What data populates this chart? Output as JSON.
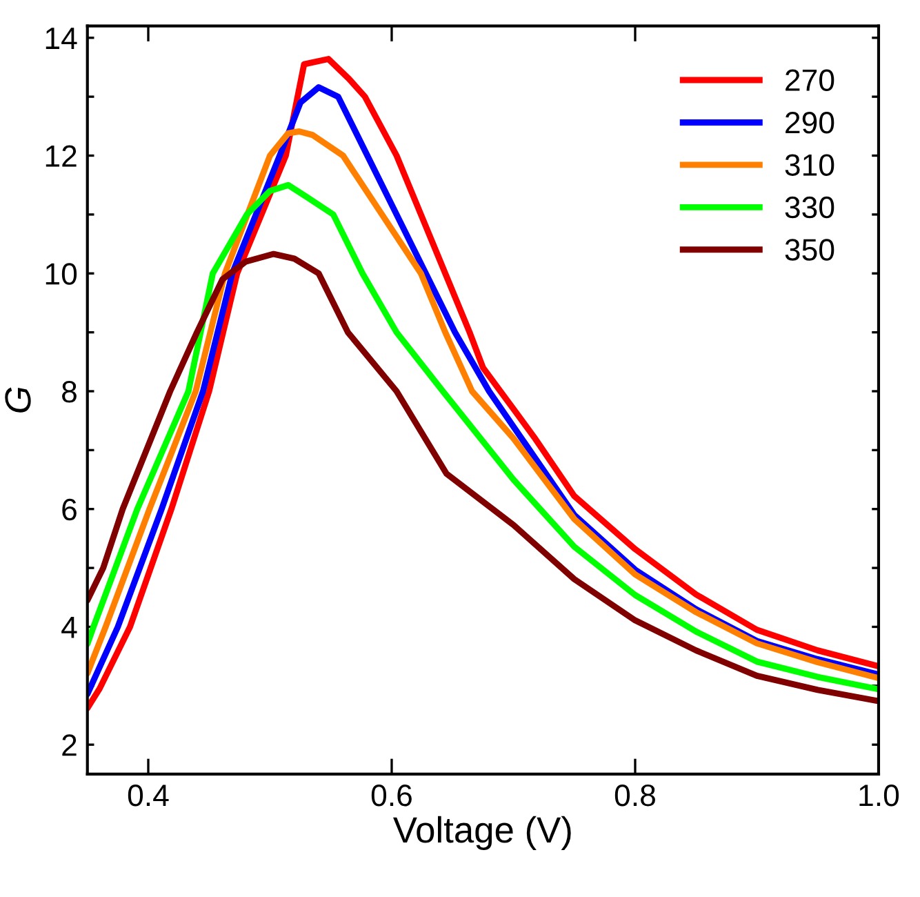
{
  "chart_data": {
    "type": "line",
    "xlabel": "Voltage (V)",
    "ylabel": "G",
    "xlim": [
      0.35,
      1.0
    ],
    "ylim": [
      1.5,
      14.2
    ],
    "xticks": [
      0.4,
      0.6,
      0.8,
      {
        "value": 1.0,
        "label": "1.0"
      }
    ],
    "yticks": [
      2,
      {
        "value": 3,
        "label": null
      },
      4,
      {
        "value": 5,
        "label": null
      },
      6,
      {
        "value": 7,
        "label": null
      },
      8,
      {
        "value": 9,
        "label": null
      },
      10,
      {
        "value": 11,
        "label": null
      },
      12,
      {
        "value": 13,
        "label": null
      },
      14
    ],
    "grid": false,
    "legend": "top right",
    "marker": "none",
    "line_style": "solid",
    "series": [
      {
        "name": "270",
        "color": "#ff0000",
        "x": [
          0.35,
          0.36,
          0.385,
          0.419,
          0.45,
          0.473,
          0.513,
          0.528,
          0.548,
          0.565,
          0.578,
          0.604,
          0.624,
          0.644,
          0.664,
          0.675,
          0.7,
          0.717,
          0.75,
          0.8,
          0.85,
          0.9,
          0.95,
          1.0
        ],
        "values": [
          2.62,
          2.95,
          4.0,
          6.0,
          8.0,
          10.0,
          12.0,
          13.55,
          13.64,
          13.3,
          13.0,
          12.0,
          11.0,
          10.0,
          9.0,
          8.4,
          7.7,
          7.22,
          6.22,
          5.32,
          4.55,
          3.95,
          3.6,
          3.33
        ]
      },
      {
        "name": "290",
        "color": "#0000ff",
        "x": [
          0.35,
          0.375,
          0.411,
          0.445,
          0.469,
          0.508,
          0.525,
          0.54,
          0.556,
          0.58,
          0.604,
          0.628,
          0.652,
          0.68,
          0.7,
          0.75,
          0.8,
          0.85,
          0.9,
          0.95,
          1.0
        ],
        "values": [
          2.86,
          4.0,
          6.0,
          8.0,
          10.0,
          12.0,
          12.9,
          13.16,
          13.0,
          12.0,
          11.0,
          10.0,
          9.0,
          8.0,
          7.4,
          5.9,
          4.97,
          4.3,
          3.76,
          3.45,
          3.19
        ]
      },
      {
        "name": "310",
        "color": "#ff8000",
        "x": [
          0.35,
          0.365,
          0.401,
          0.439,
          0.463,
          0.5,
          0.515,
          0.524,
          0.535,
          0.56,
          0.592,
          0.624,
          0.644,
          0.666,
          0.7,
          0.75,
          0.8,
          0.85,
          0.9,
          0.95,
          1.0
        ],
        "values": [
          3.21,
          4.0,
          6.0,
          8.0,
          10.0,
          12.0,
          12.38,
          12.41,
          12.35,
          12.0,
          11.0,
          10.0,
          9.0,
          8.0,
          7.2,
          5.83,
          4.89,
          4.25,
          3.72,
          3.4,
          3.13
        ]
      },
      {
        "name": "330",
        "color": "#00ff00",
        "x": [
          0.35,
          0.355,
          0.391,
          0.433,
          0.453,
          0.481,
          0.5,
          0.515,
          0.53,
          0.552,
          0.576,
          0.604,
          0.642,
          0.7,
          0.75,
          0.8,
          0.85,
          0.9,
          0.95,
          1.0
        ],
        "values": [
          3.71,
          4.0,
          6.0,
          8.0,
          10.0,
          11.0,
          11.4,
          11.5,
          11.3,
          11.0,
          10.0,
          9.0,
          8.0,
          6.5,
          5.36,
          4.54,
          3.92,
          3.41,
          3.15,
          2.94
        ]
      },
      {
        "name": "350",
        "color": "#800000",
        "x": [
          0.35,
          0.363,
          0.379,
          0.418,
          0.44,
          0.461,
          0.48,
          0.503,
          0.52,
          0.54,
          0.564,
          0.604,
          0.645,
          0.7,
          0.75,
          0.8,
          0.85,
          0.9,
          0.95,
          1.0
        ],
        "values": [
          4.45,
          5.0,
          6.0,
          8.0,
          9.0,
          9.9,
          10.2,
          10.33,
          10.25,
          10.0,
          9.0,
          8.0,
          6.6,
          5.73,
          4.81,
          4.11,
          3.6,
          3.17,
          2.93,
          2.74
        ]
      }
    ]
  }
}
